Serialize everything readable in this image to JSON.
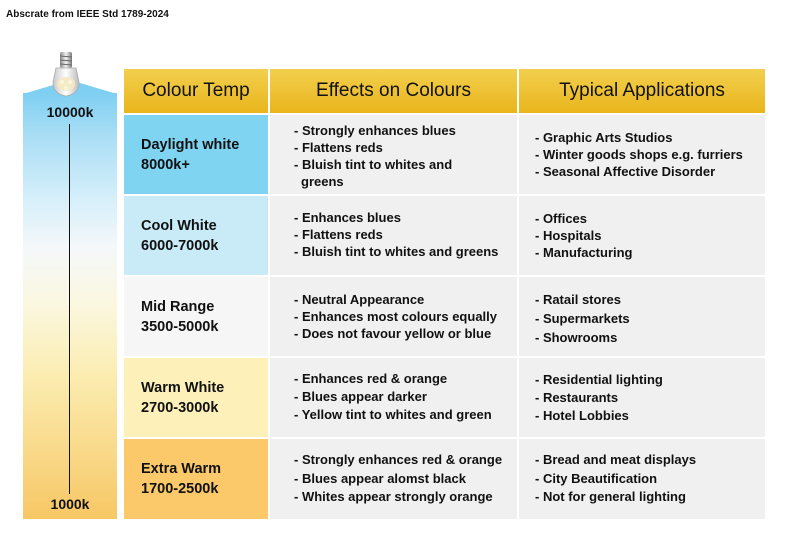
{
  "caption": "Abscrate from IEEE Std 1789-2024",
  "scale": {
    "top_label": "10000k",
    "bottom_label": "1000k"
  },
  "headers": {
    "colour_temp": "Colour Temp",
    "effects": "Effects on Colours",
    "applications": "Typical Applications"
  },
  "rows": [
    {
      "name": "Daylight white",
      "range": "8000k+",
      "color": "#7fd4f1",
      "effects": [
        "- Strongly enhances blues",
        "- Flattens reds",
        "- Bluish tint to whites and greens"
      ],
      "applications": [
        "- Graphic Arts Studios",
        "- Winter goods shops e.g. furriers",
        "- Seasonal Affective Disorder"
      ]
    },
    {
      "name": "Cool White",
      "range": "6000-7000k",
      "color": "#c9ebf8",
      "effects": [
        "- Enhances blues",
        "- Flattens reds",
        "- Bluish tint to whites and greens"
      ],
      "applications": [
        "- Offices",
        "- Hospitals",
        "- Manufacturing"
      ]
    },
    {
      "name": "Mid Range",
      "range": "3500-5000k",
      "color": "#f6f6f6",
      "effects": [
        "- Neutral Appearance",
        "- Enhances most colours equally",
        "- Does not favour yellow or blue"
      ],
      "applications": [
        "- Ratail stores",
        "- Supermarkets",
        "- Showrooms"
      ]
    },
    {
      "name": "Warm White",
      "range": "2700-3000k",
      "color": "#fdf0b9",
      "effects": [
        "- Enhances red & orange",
        "- Blues appear darker",
        "- Yellow tint to whites and green"
      ],
      "applications": [
        "- Residential lighting",
        "- Restaurants",
        "- Hotel Lobbies"
      ]
    },
    {
      "name": "Extra Warm",
      "range": "1700-2500k",
      "color": "#fbc96a",
      "effects": [
        "- Strongly enhances red & orange",
        "- Blues appear alomst black",
        "- Whites appear strongly orange"
      ],
      "applications": [
        "- Bread and meat displays",
        "- City Beautification",
        "- Not for general lighting"
      ]
    }
  ]
}
